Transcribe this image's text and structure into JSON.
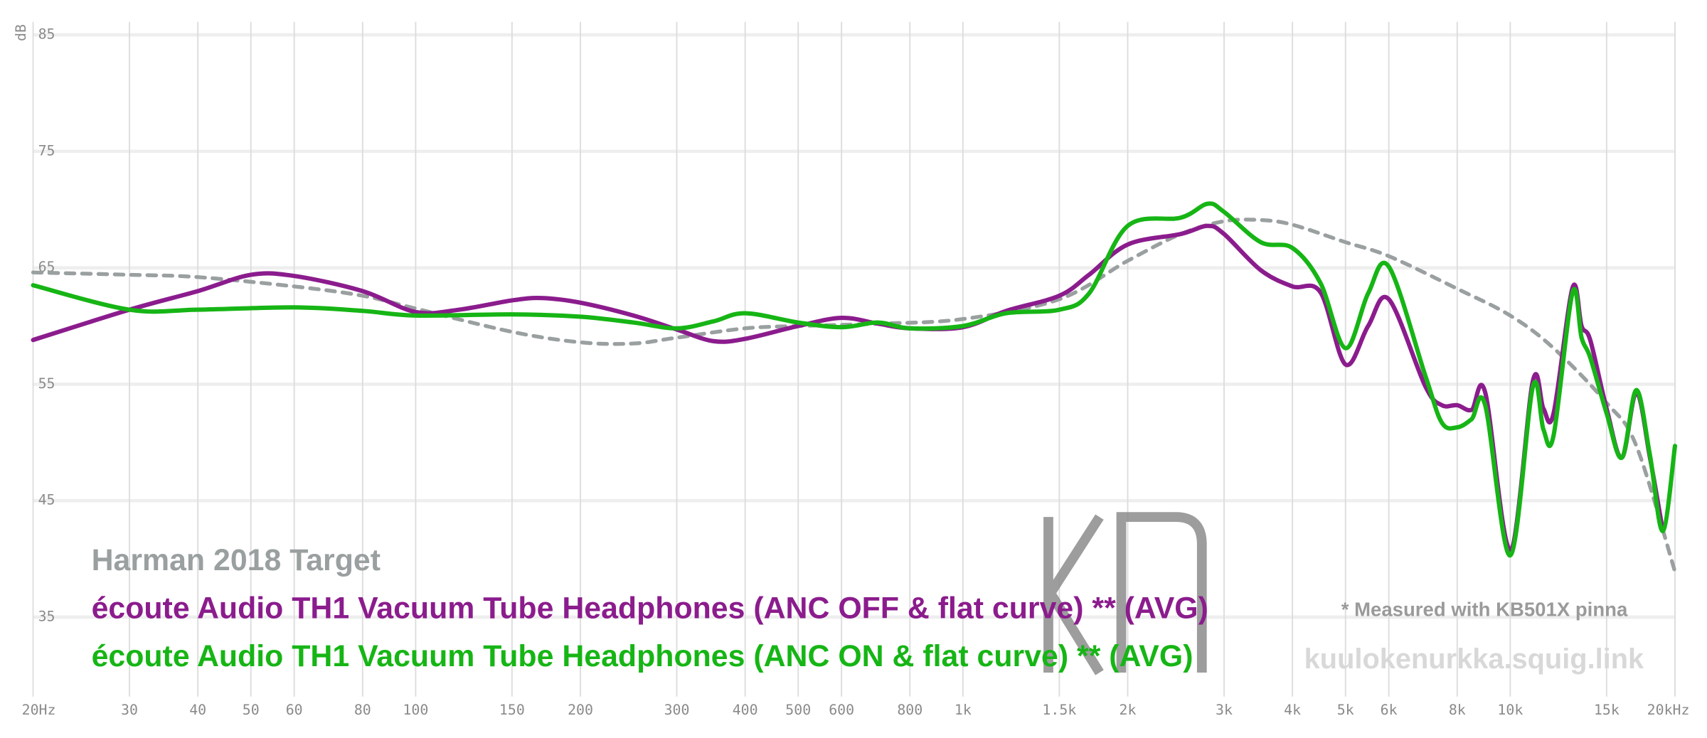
{
  "chart_data": {
    "type": "line",
    "xscale": "log",
    "grid": true,
    "ylabel": "dB",
    "xlim": [
      20,
      20000
    ],
    "ylim": [
      28,
      86
    ],
    "yticks": [
      35,
      45,
      55,
      65,
      75,
      85
    ],
    "xticks": [
      {
        "value": 20,
        "label": "20Hz"
      },
      30,
      40,
      50,
      60,
      80,
      100,
      150,
      200,
      300,
      400,
      500,
      600,
      800,
      {
        "value": 1000,
        "label": "1k"
      },
      {
        "value": 1500,
        "label": "1.5k"
      },
      {
        "value": 2000,
        "label": "2k"
      },
      {
        "value": 3000,
        "label": "3k"
      },
      {
        "value": 4000,
        "label": "4k"
      },
      {
        "value": 5000,
        "label": "5k"
      },
      {
        "value": 6000,
        "label": "6k"
      },
      {
        "value": 8000,
        "label": "8k"
      },
      {
        "value": 10000,
        "label": "10k"
      },
      {
        "value": 15000,
        "label": "15k"
      },
      {
        "value": 20000,
        "label": "20kHz"
      }
    ],
    "series": [
      {
        "name": "Harman 2018 Target",
        "color": "#9a9fa0",
        "line_style": "dashed",
        "x": [
          20,
          30,
          40,
          60,
          80,
          100,
          150,
          200,
          250,
          300,
          400,
          500,
          700,
          1000,
          1500,
          2000,
          2500,
          3000,
          3500,
          4000,
          5000,
          6000,
          8000,
          10000,
          12000,
          15000,
          17000,
          20000
        ],
        "values": [
          64.6,
          64.4,
          64.2,
          63.4,
          62.6,
          61.5,
          59.5,
          58.6,
          58.5,
          59.0,
          59.8,
          60.0,
          60.2,
          60.6,
          62.3,
          65.6,
          67.9,
          69.0,
          69.1,
          68.7,
          67.2,
          66.0,
          63.2,
          60.9,
          58.1,
          53.4,
          49.7,
          38.9
        ]
      },
      {
        "name": "écoute Audio TH1 Vacuum Tube Headphones (ANC OFF & flat curve) ** (AVG)",
        "color": "#8b1c8d",
        "line_style": "solid",
        "x": [
          20,
          30,
          40,
          50,
          60,
          80,
          100,
          120,
          150,
          170,
          200,
          250,
          300,
          350,
          400,
          500,
          600,
          700,
          800,
          1000,
          1200,
          1500,
          1700,
          2000,
          2500,
          2800,
          3000,
          3500,
          4000,
          4500,
          5000,
          5500,
          6000,
          7000,
          7500,
          8000,
          8500,
          9000,
          10000,
          11000,
          11500,
          12000,
          13000,
          13500,
          14000,
          15000,
          16000,
          17000,
          18000,
          19000
        ],
        "values": [
          58.8,
          61.4,
          63.0,
          64.4,
          64.3,
          63.0,
          61.2,
          61.4,
          62.2,
          62.4,
          62.0,
          60.9,
          59.7,
          58.7,
          58.9,
          60.0,
          60.7,
          60.2,
          59.8,
          59.9,
          61.3,
          62.6,
          64.4,
          67.0,
          67.9,
          68.6,
          67.9,
          64.8,
          63.4,
          62.9,
          56.7,
          60.0,
          62.3,
          54.8,
          53.2,
          53.2,
          52.8,
          54.3,
          40.8,
          55.3,
          52.9,
          52.5,
          63.3,
          60.0,
          58.8,
          52.9,
          48.7,
          54.3,
          48.7,
          42.4
        ]
      },
      {
        "name": "écoute Audio TH1 Vacuum Tube Headphones (ANC ON & flat curve) ** (AVG)",
        "color": "#16b515",
        "line_style": "solid",
        "x": [
          20,
          30,
          40,
          60,
          80,
          100,
          150,
          200,
          250,
          300,
          350,
          400,
          500,
          600,
          700,
          800,
          1000,
          1200,
          1500,
          1700,
          2000,
          2500,
          2800,
          3000,
          3500,
          4000,
          4500,
          5000,
          5500,
          6000,
          7000,
          7500,
          8000,
          8500,
          9000,
          10000,
          11000,
          11500,
          12000,
          13000,
          13500,
          14000,
          15000,
          16000,
          17000,
          18000,
          19000,
          20000
        ],
        "values": [
          63.5,
          61.4,
          61.4,
          61.6,
          61.3,
          60.9,
          61.0,
          60.8,
          60.3,
          59.8,
          60.4,
          61.1,
          60.3,
          59.9,
          60.3,
          59.8,
          60.0,
          61.1,
          61.4,
          62.8,
          68.6,
          69.3,
          70.5,
          69.8,
          67.2,
          66.7,
          63.7,
          58.1,
          62.8,
          65.1,
          55.7,
          51.7,
          51.3,
          52.0,
          53.2,
          40.3,
          54.8,
          51.1,
          50.6,
          62.9,
          59.0,
          57.3,
          52.5,
          48.7,
          54.5,
          48.9,
          42.4,
          49.7
        ]
      }
    ],
    "annotations": [
      "* Measured with KB501X pinna",
      "kuulokenurkka.squig.link"
    ]
  }
}
